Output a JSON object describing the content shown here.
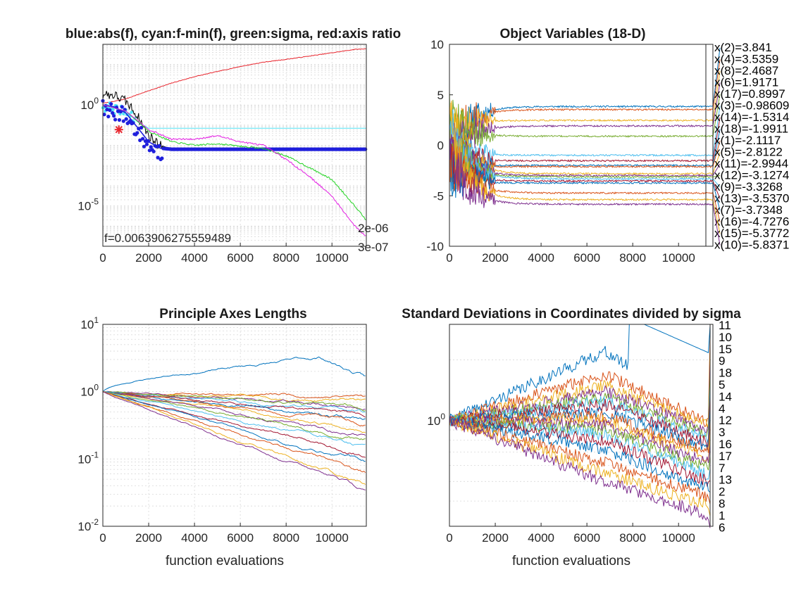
{
  "chart_data": [
    {
      "type": "line",
      "title": "blue:abs(f), cyan:f-min(f), green:sigma, red:axis ratio",
      "yscale": "log",
      "xlim": [
        0,
        11500
      ],
      "ylim": [
        1e-07,
        1000
      ],
      "xticks": [
        "0",
        "2000",
        "4000",
        "6000",
        "8000",
        "10000"
      ],
      "yticks": [
        {
          "base": "10",
          "exp": "0",
          "value": 1
        },
        {
          "base": "10",
          "exp": "-5",
          "value": 1e-05
        }
      ],
      "annotation": "f=0.0063906275559489",
      "end_labels": [
        "2e-06",
        "3e-07"
      ],
      "marker_note": "red star at best f",
      "series": [
        {
          "color": "#e8262e",
          "x": [
            0,
            500,
            1000,
            2000,
            3000,
            4000,
            5000,
            6000,
            7000,
            8000,
            9000,
            10000,
            11000,
            11500
          ],
          "y": [
            1.2,
            1.5,
            2.0,
            5,
            12,
            25,
            45,
            80,
            130,
            180,
            260,
            380,
            560,
            600
          ]
        },
        {
          "color": "#000000",
          "x": [
            0,
            500,
            1000,
            1500,
            2000,
            2500,
            3000,
            11500
          ],
          "y": [
            3.5,
            3.0,
            1.5,
            0.3,
            0.03,
            0.01,
            0.0066,
            0.0064
          ]
        },
        {
          "color": "#4fe3f5",
          "x": [
            0,
            1000,
            1500,
            2000,
            11500
          ],
          "y": [
            1.0,
            0.5,
            0.15,
            0.07,
            0.07
          ]
        },
        {
          "color": "#1f1fdc",
          "x": [
            0,
            500,
            1000,
            1500,
            2000,
            2500,
            3000,
            11500
          ],
          "y": [
            1.0,
            0.8,
            0.4,
            0.08,
            0.015,
            0.0072,
            0.0064,
            0.0064
          ]
        },
        {
          "color": "#22d322",
          "x": [
            0,
            1000,
            2000,
            3000,
            4000,
            5000,
            6000,
            7000,
            8000,
            9000,
            10000,
            11000,
            11500
          ],
          "y": [
            1.0,
            0.5,
            0.05,
            0.015,
            0.01,
            0.012,
            0.009,
            0.007,
            0.003,
            0.0008,
            0.0002,
            1e-05,
            2e-06
          ]
        },
        {
          "color": "#e21ee2",
          "x": [
            0,
            1000,
            2000,
            3000,
            4000,
            5000,
            6000,
            7000,
            8000,
            9000,
            10000,
            11000,
            11500
          ],
          "y": [
            1.0,
            0.5,
            0.06,
            0.02,
            0.02,
            0.03,
            0.015,
            0.01,
            0.002,
            0.0003,
            3e-05,
            1e-06,
            3e-07
          ]
        }
      ]
    },
    {
      "type": "line",
      "title": "Object Variables (18-D)",
      "xlim": [
        0,
        11500
      ],
      "ylim": [
        -10,
        10
      ],
      "xticks": [
        "0",
        "2000",
        "4000",
        "6000",
        "8000",
        "10000"
      ],
      "yticks": [
        "10",
        "5",
        "0",
        "-5",
        "-10"
      ],
      "final_x": 11500,
      "labels": [
        "x(2)=3.841",
        "x(4)=3.5359",
        "x(8)=2.4687",
        "x(6)=1.9171",
        "x(17)=0.8997",
        "x(3)=-0.98609",
        "x(14)=-1.5314",
        "x(18)=-1.9911",
        "x(1)=-2.1117",
        "x(5)=-2.8122",
        "x(11)=-2.9944",
        "x(12)=-3.1274",
        "x(9)=-3.3268",
        "x(13)=-3.5370",
        "x(7)=-3.7348",
        "x(16)=-4.7276",
        "x(15)=-5.3772",
        "x(10)=-5.8371"
      ],
      "final_values": [
        3.841,
        3.5359,
        2.4687,
        1.9171,
        0.8997,
        -0.98609,
        -1.5314,
        -1.9911,
        -2.1117,
        -2.8122,
        -2.9944,
        -3.1274,
        -3.3268,
        -3.537,
        -3.7348,
        -4.7276,
        -5.3772,
        -5.8371
      ]
    },
    {
      "type": "line",
      "title": "Principle Axes Lengths",
      "xlabel": "function evaluations",
      "yscale": "log",
      "xlim": [
        0,
        11500
      ],
      "ylim": [
        0.01,
        10
      ],
      "xticks": [
        "0",
        "2000",
        "4000",
        "6000",
        "8000",
        "10000"
      ],
      "yticks": [
        {
          "base": "10",
          "exp": "1",
          "value": 10
        },
        {
          "base": "10",
          "exp": "0",
          "value": 1
        },
        {
          "base": "10",
          "exp": "-1",
          "value": 0.1
        },
        {
          "base": "10",
          "exp": "-2",
          "value": 0.01
        }
      ],
      "start_value": 1.0,
      "final_values": [
        3.2,
        0.85,
        0.72,
        0.6,
        0.55,
        0.5,
        0.45,
        0.4,
        0.33,
        0.28,
        0.23,
        0.19,
        0.15,
        0.12,
        0.085,
        0.065,
        0.04,
        0.032
      ]
    },
    {
      "type": "line",
      "title": "Standard Deviations in Coordinates divided by sigma",
      "xlabel": "function evaluations",
      "yscale": "log",
      "xlim": [
        0,
        11500
      ],
      "ylim": [
        0.3,
        3.0
      ],
      "xticks": [
        "0",
        "2000",
        "4000",
        "6000",
        "8000",
        "10000"
      ],
      "yticks": [
        {
          "base": "10",
          "exp": "0",
          "value": 1
        }
      ],
      "labels": [
        "11",
        "10",
        "15",
        "9",
        "18",
        "5",
        "14",
        "4",
        "12",
        "3",
        "16",
        "17",
        "7",
        "13",
        "2",
        "8",
        "1",
        "6"
      ],
      "peak": {
        "x": 8500,
        "y": 3.0
      },
      "final_values": [
        3.0,
        2.6,
        2.2,
        2.0,
        1.8,
        1.5,
        1.3,
        1.15,
        1.0,
        0.88,
        0.8,
        0.75,
        0.68,
        0.62,
        0.54,
        0.46,
        0.38,
        0.33
      ]
    }
  ]
}
